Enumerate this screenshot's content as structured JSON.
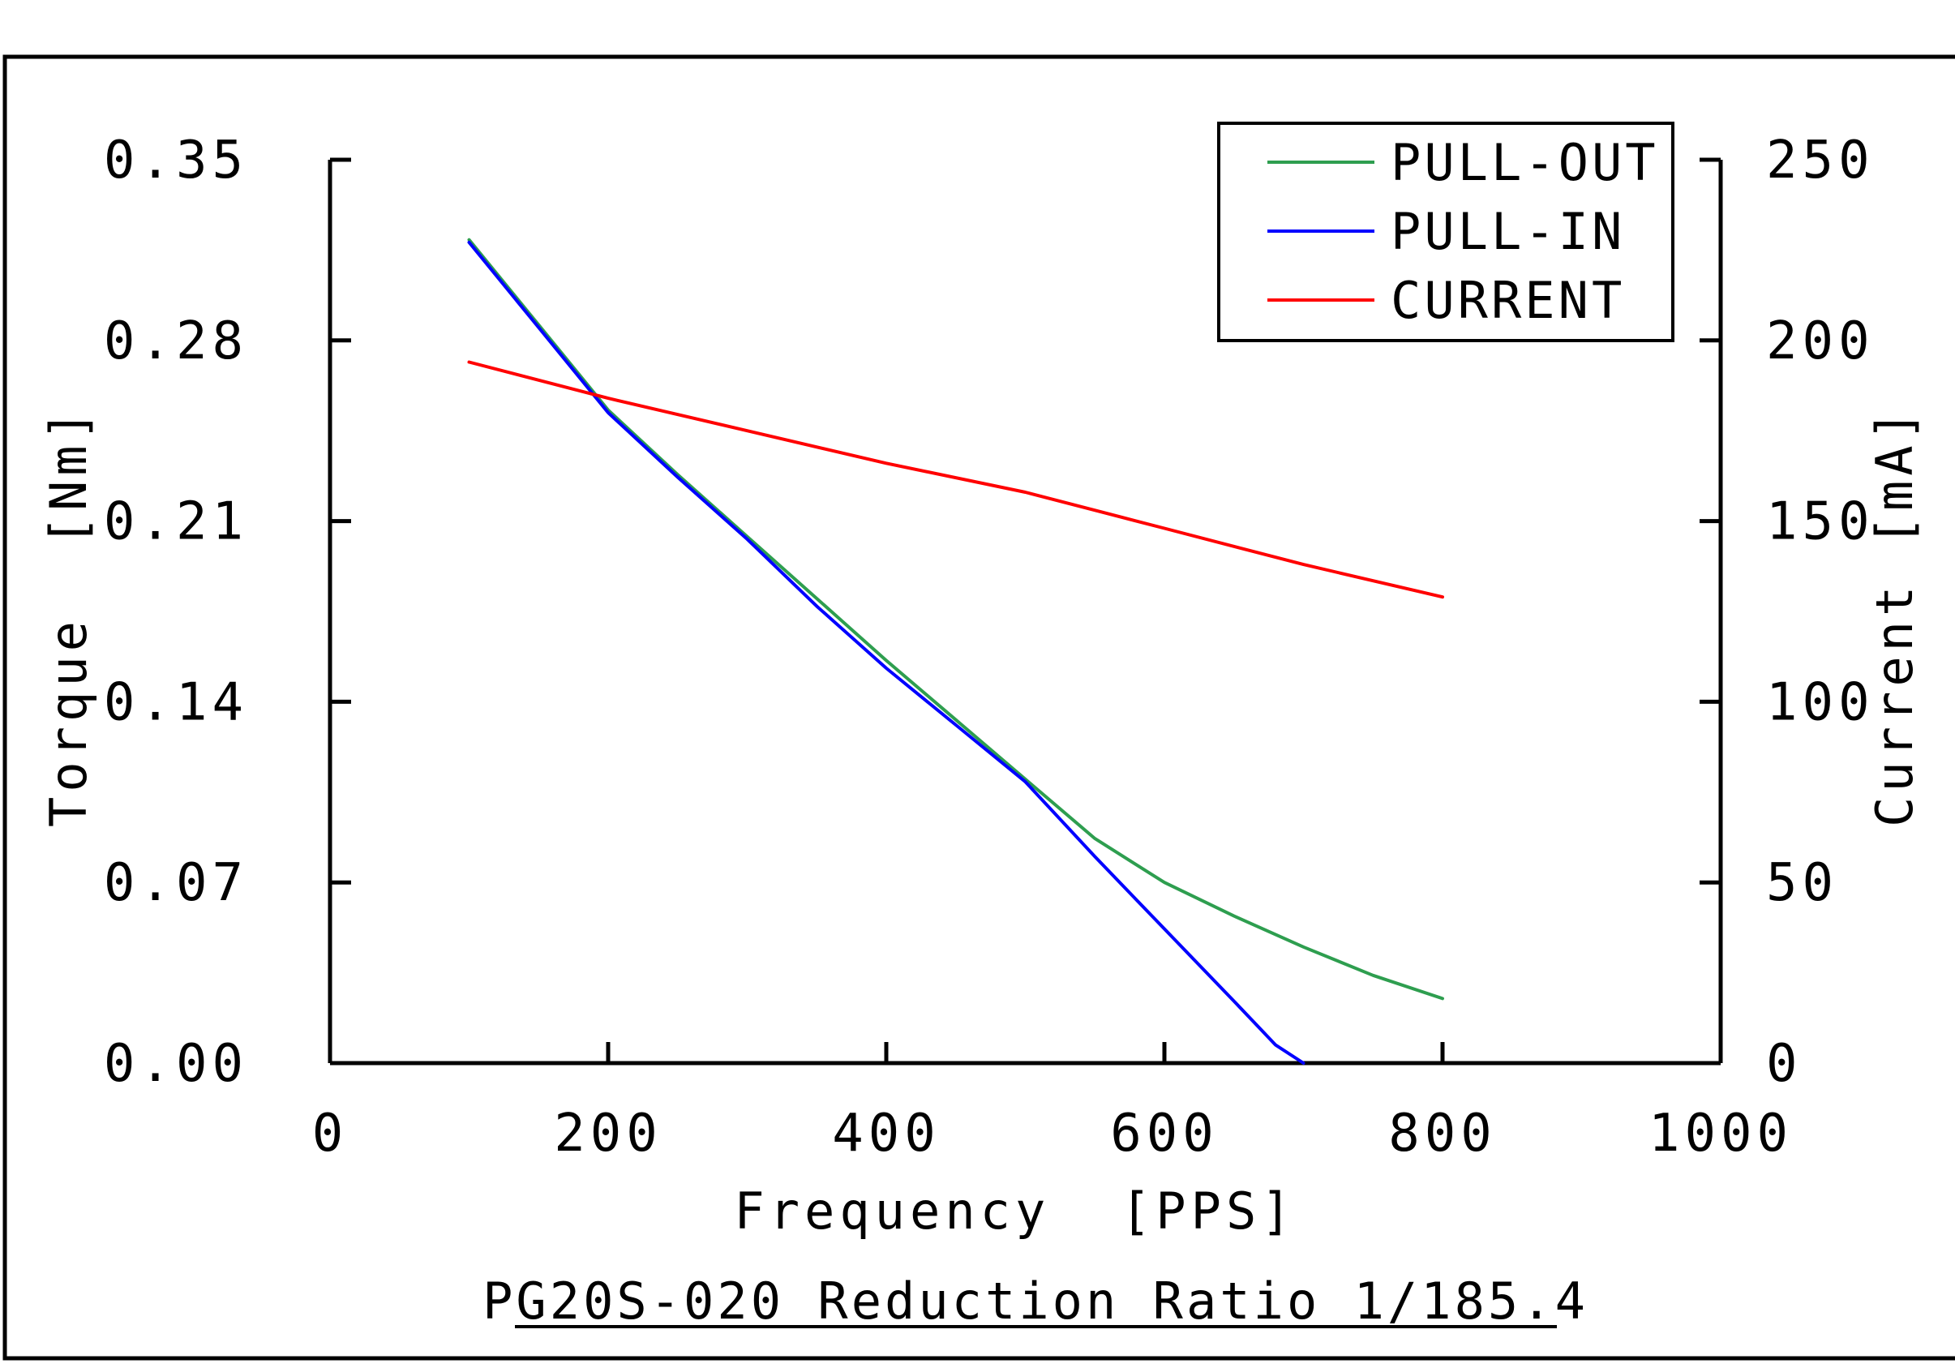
{
  "chart_data": {
    "type": "line",
    "caption": "PG20S-020 Reduction Ratio 1/185.4",
    "xlabel": "Frequency  [PPS]",
    "ylabel_left": "Torque  [Nm]",
    "ylabel_right": "Current [mA]",
    "xlim": [
      0,
      1000
    ],
    "ylim_left": [
      0,
      0.35
    ],
    "ylim_right": [
      0,
      250
    ],
    "x_ticks": [
      "0",
      "200",
      "400",
      "600",
      "800",
      "1000"
    ],
    "y_left_ticks": [
      "0.00",
      "0.07",
      "0.14",
      "0.21",
      "0.28",
      "0.35"
    ],
    "y_right_ticks": [
      "0",
      "50",
      "100",
      "150",
      "200",
      "250"
    ],
    "grid": false,
    "legend_position": "top-right",
    "series": [
      {
        "name": "PULL-OUT",
        "axis": "left",
        "color": "#2e9e4f",
        "x": [
          100,
          150,
          200,
          250,
          300,
          350,
          400,
          450,
          500,
          550,
          600,
          650,
          700,
          750,
          800
        ],
        "y": [
          0.319,
          0.286,
          0.253,
          0.228,
          0.204,
          0.18,
          0.156,
          0.133,
          0.11,
          0.087,
          0.07,
          0.057,
          0.045,
          0.034,
          0.025
        ]
      },
      {
        "name": "PULL-IN",
        "axis": "left",
        "color": "#0000ff",
        "x": [
          100,
          150,
          200,
          250,
          300,
          350,
          400,
          450,
          500,
          550,
          600,
          650,
          680,
          700
        ],
        "y": [
          0.318,
          0.285,
          0.252,
          0.227,
          0.203,
          0.177,
          0.153,
          0.131,
          0.109,
          0.08,
          0.052,
          0.024,
          0.007,
          0.0
        ]
      },
      {
        "name": "CURRENT",
        "axis": "right",
        "color": "#ff0000",
        "x": [
          100,
          200,
          300,
          400,
          500,
          600,
          700,
          800
        ],
        "y": [
          194,
          184,
          175,
          166,
          158,
          148,
          138,
          129
        ]
      }
    ]
  }
}
